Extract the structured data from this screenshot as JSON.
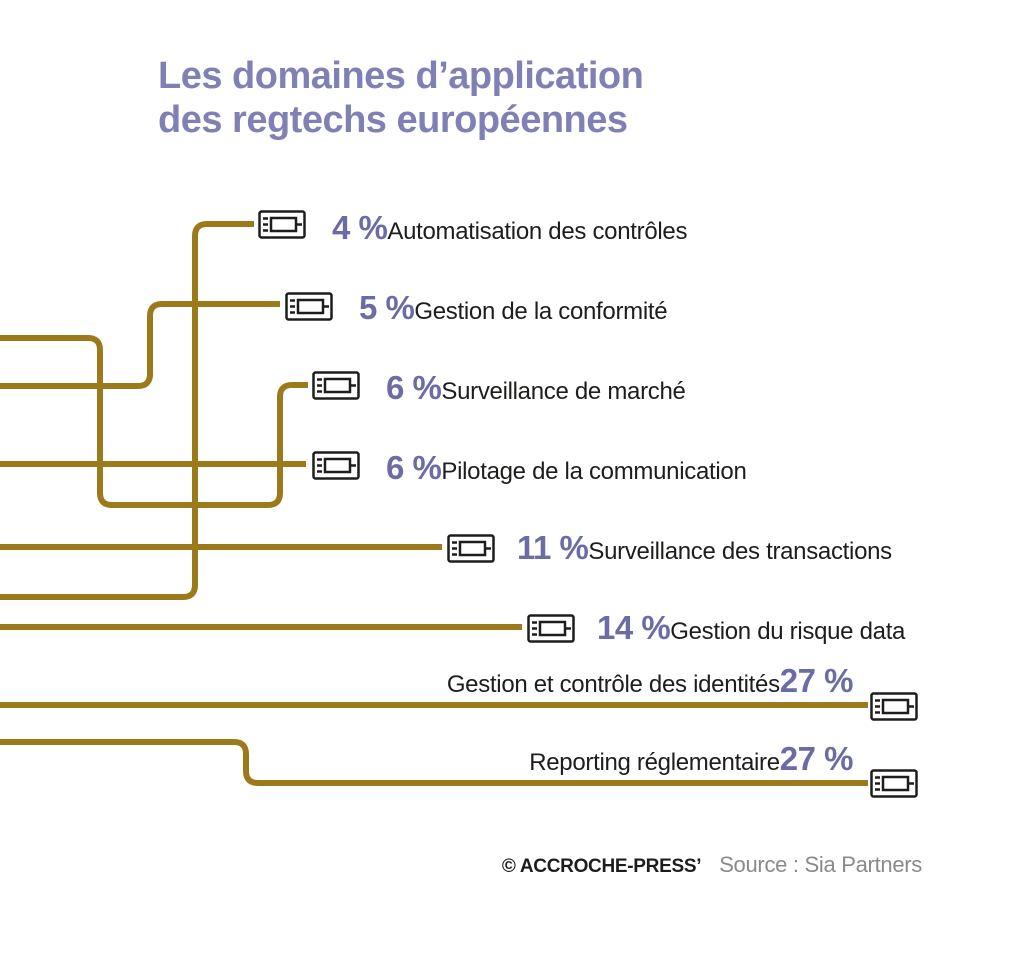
{
  "title": {
    "line1": "Les domaines d’application",
    "line2": "des regtechs européennes"
  },
  "colors": {
    "title": "#7f80b3",
    "percent": "#6b6ca3",
    "wire": "#9c7a1b",
    "connector": "#1d1d1b",
    "text": "#1d1d1b",
    "source": "#8a8a8a"
  },
  "chart_data": {
    "type": "bar",
    "title": "Les domaines d’application des regtechs européennes",
    "unit": "%",
    "categories": [
      "Automatisation des contrôles",
      "Gestion de la conformité",
      "Surveillance de marché",
      "Pilotage de la communication",
      "Surveillance des transactions",
      "Gestion du risque data",
      "Gestion et contrôle des identités",
      "Reporting réglementaire"
    ],
    "values": [
      4,
      5,
      6,
      6,
      11,
      14,
      27,
      27
    ],
    "value_labels": [
      "4 %",
      "5 %",
      "6 %",
      "6 %",
      "11 %",
      "14 %",
      "27 %",
      "27 %"
    ]
  },
  "footer": {
    "credit": "© ACCROCHE-PRESS’",
    "source": "Source : Sia Partners"
  }
}
